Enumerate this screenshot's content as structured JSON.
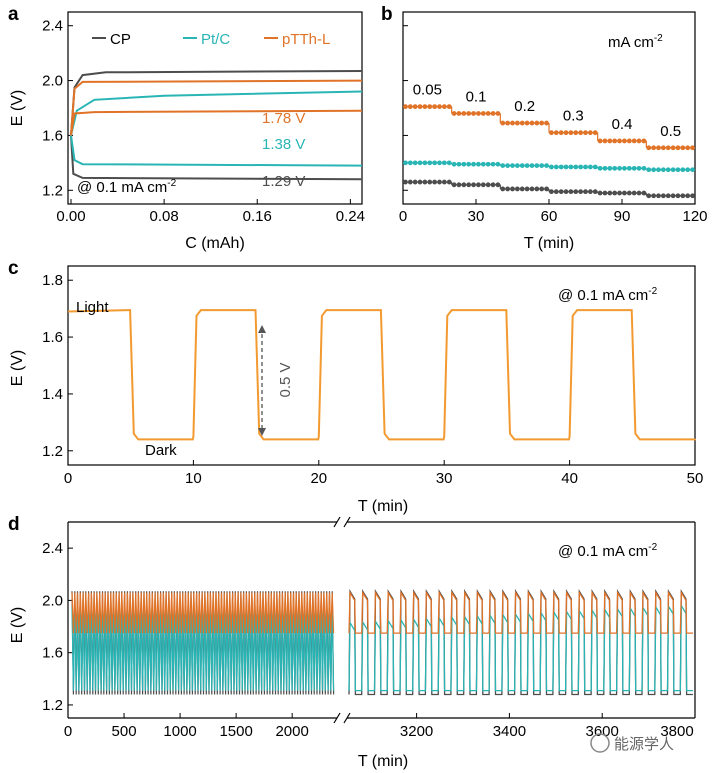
{
  "colors": {
    "cp": "#4d4d4d",
    "ptc": "#2ab5b5",
    "pTTh": "#e07328",
    "dashed": "#555555",
    "axis": "#000000"
  },
  "chart_data": [
    {
      "panel": "a",
      "type": "line",
      "xlabel": "C (mAh)",
      "ylabel": "E (V)",
      "xlim": [
        0,
        0.25
      ],
      "ylim": [
        1.1,
        2.5
      ],
      "xticks": [
        "0.00",
        "0.08",
        "0.16",
        "0.24"
      ],
      "yticks": [
        "1.2",
        "1.6",
        "2.0",
        "2.4"
      ],
      "legend": [
        "CP",
        "Pt/C",
        "pTTh-L"
      ],
      "condition": "@ 0.1 mA cm",
      "condition_sup": "-2",
      "annotations": [
        "1.78 V",
        "1.38 V",
        "1.29 V"
      ],
      "series": [
        {
          "name": "CP",
          "charge": [
            [
              0,
              1.6
            ],
            [
              0.003,
              1.95
            ],
            [
              0.01,
              2.04
            ],
            [
              0.03,
              2.06
            ],
            [
              0.25,
              2.07
            ]
          ],
          "discharge": [
            [
              0,
              1.6
            ],
            [
              0.002,
              1.32
            ],
            [
              0.01,
              1.29
            ],
            [
              0.25,
              1.28
            ]
          ]
        },
        {
          "name": "Pt/C",
          "charge": [
            [
              0,
              1.6
            ],
            [
              0.005,
              1.78
            ],
            [
              0.02,
              1.86
            ],
            [
              0.08,
              1.89
            ],
            [
              0.25,
              1.92
            ]
          ],
          "discharge": [
            [
              0,
              1.6
            ],
            [
              0.003,
              1.42
            ],
            [
              0.01,
              1.39
            ],
            [
              0.25,
              1.38
            ]
          ]
        },
        {
          "name": "pTTh-L",
          "charge": [
            [
              0,
              1.6
            ],
            [
              0.003,
              1.94
            ],
            [
              0.01,
              1.99
            ],
            [
              0.25,
              2.0
            ]
          ],
          "discharge": [
            [
              0,
              1.6
            ],
            [
              0.003,
              1.76
            ],
            [
              0.02,
              1.77
            ],
            [
              0.25,
              1.78
            ]
          ]
        }
      ]
    },
    {
      "panel": "b",
      "type": "scatter",
      "xlabel": "T (min)",
      "xlim": [
        0,
        120
      ],
      "ylim": [
        1.1,
        2.5
      ],
      "xticks": [
        "0",
        "30",
        "60",
        "90",
        "120"
      ],
      "unit_label": "mA cm",
      "unit_sup": "-2",
      "current_labels": [
        "0.05",
        "0.1",
        "0.2",
        "0.3",
        "0.4",
        "0.5"
      ],
      "segments": [
        {
          "current": 0.05,
          "t": [
            0,
            20
          ],
          "pTTh": 1.81,
          "ptc": 1.4,
          "cp": 1.26
        },
        {
          "current": 0.1,
          "t": [
            20,
            40
          ],
          "pTTh": 1.76,
          "ptc": 1.39,
          "cp": 1.24
        },
        {
          "current": 0.2,
          "t": [
            40,
            60
          ],
          "pTTh": 1.69,
          "ptc": 1.38,
          "cp": 1.21
        },
        {
          "current": 0.3,
          "t": [
            60,
            80
          ],
          "pTTh": 1.62,
          "ptc": 1.37,
          "cp": 1.19
        },
        {
          "current": 0.4,
          "t": [
            80,
            100
          ],
          "pTTh": 1.56,
          "ptc": 1.36,
          "cp": 1.18
        },
        {
          "current": 0.5,
          "t": [
            100,
            120
          ],
          "pTTh": 1.51,
          "ptc": 1.35,
          "cp": 1.16
        }
      ]
    },
    {
      "panel": "c",
      "type": "line",
      "xlabel": "T (min)",
      "ylabel": "E (V)",
      "xlim": [
        0,
        50
      ],
      "ylim": [
        1.15,
        1.85
      ],
      "xticks": [
        "0",
        "10",
        "20",
        "30",
        "40",
        "50"
      ],
      "yticks": [
        "1.2",
        "1.4",
        "1.6",
        "1.8"
      ],
      "condition": "@ 0.1 mA cm",
      "condition_sup": "-2",
      "labels": {
        "light": "Light",
        "dark": "Dark",
        "delta": "0.5 V"
      },
      "light_level": 1.695,
      "dark_level": 1.24,
      "light_intervals": [
        [
          0,
          5
        ],
        [
          10,
          15
        ],
        [
          20,
          25
        ],
        [
          30,
          35
        ],
        [
          40,
          45
        ]
      ],
      "dark_intervals": [
        [
          5,
          10
        ],
        [
          15,
          20
        ],
        [
          25,
          30
        ],
        [
          35,
          40
        ],
        [
          45,
          50
        ]
      ]
    },
    {
      "panel": "d",
      "type": "line",
      "xlabel": "T (min)",
      "ylabel": "E (V)",
      "ylim": [
        1.1,
        2.6
      ],
      "yticks": [
        "1.2",
        "1.6",
        "2.0",
        "2.4"
      ],
      "xticks_left": [
        "0",
        "500",
        "1000",
        "1500",
        "2000"
      ],
      "xticks_right": [
        "3200",
        "3400",
        "3600",
        "3800"
      ],
      "x_break": [
        2400,
        3050
      ],
      "condition": "@ 0.1 mA cm",
      "condition_sup": "-2",
      "series": [
        {
          "name": "CP",
          "max": 2.07,
          "min": 1.28
        },
        {
          "name": "Pt/C",
          "max": 1.95,
          "min": 1.31
        },
        {
          "name": "pTTh-L",
          "max": 2.06,
          "min": 1.75
        }
      ]
    }
  ],
  "watermark": "能源学人"
}
